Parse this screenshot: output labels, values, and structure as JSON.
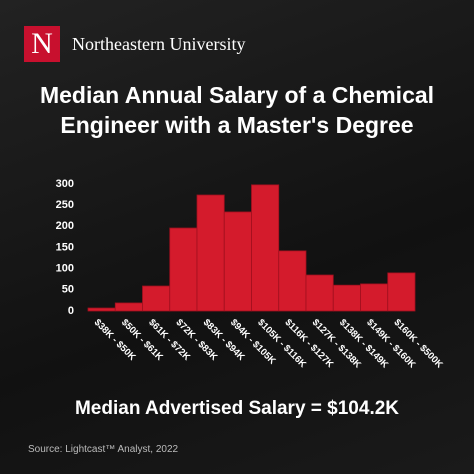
{
  "header": {
    "logo_letter": "N",
    "brand": "Northeastern University"
  },
  "chart_data": {
    "type": "bar",
    "title": "Median Annual Salary of a Chemical Engineer with a Master's Degree",
    "categories": [
      "$38K - $50K",
      "$50K - $61K",
      "$61K - $72K",
      "$72K - $83K",
      "$83K - $94K",
      "$94K - $105K",
      "$105K - $116K",
      "$116K - $127K",
      "$127K - $138K",
      "$138K - $149K",
      "$149K - $160K",
      "$160K - $500K"
    ],
    "values": [
      7,
      19,
      59,
      196,
      274,
      234,
      298,
      142,
      85,
      61,
      64,
      90
    ],
    "color": "#d41b2c",
    "ylim": [
      0,
      300
    ],
    "yticks": [
      0,
      50,
      100,
      150,
      200,
      250,
      300
    ],
    "grid": false,
    "annotation": "Median Advertised Salary = $104.2K",
    "source": "Source: Lightcast™ Analyst, 2022"
  }
}
